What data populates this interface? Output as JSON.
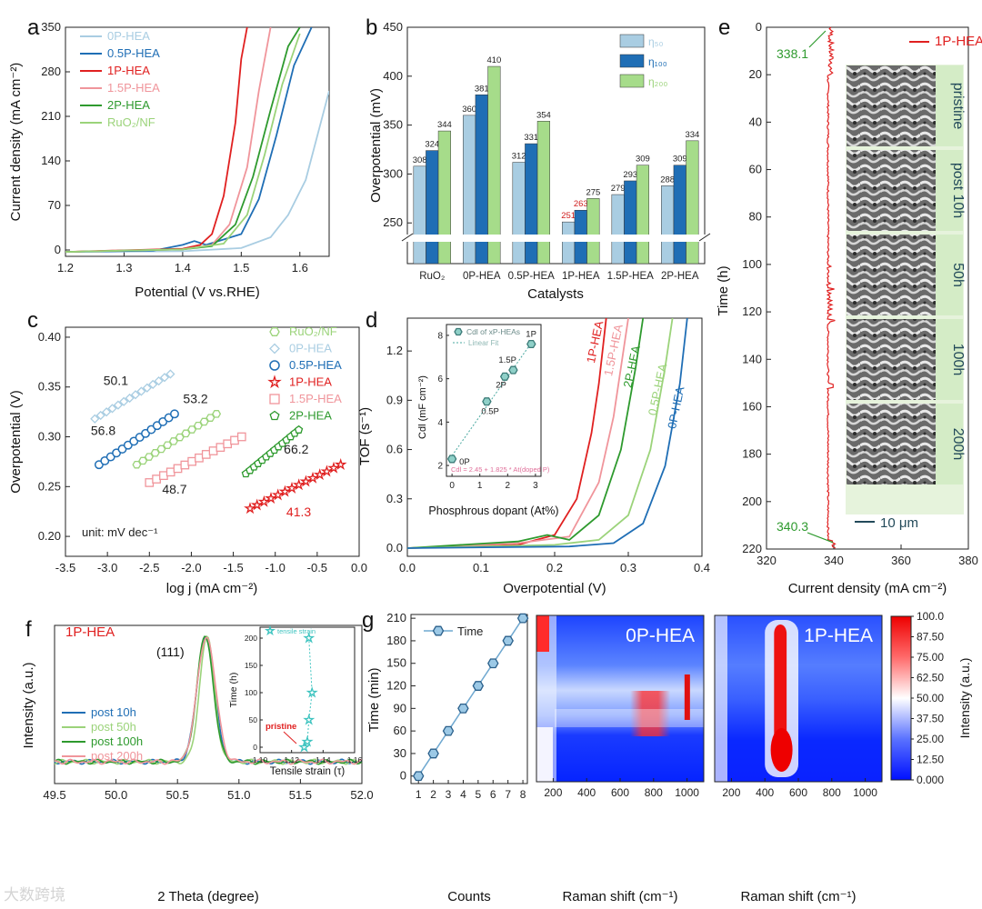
{
  "colors": {
    "0P": "#a9cde2",
    "05P": "#1f6eb5",
    "1P": "#e02020",
    "15P": "#f0959b",
    "2P": "#2e9a2e",
    "RuO2": "#9bd37a",
    "eta50": "#a9cde2",
    "eta100": "#1f6eb5",
    "eta200": "#a6dc8a"
  },
  "watermark": "大数跨境",
  "chart_data": [
    {
      "id": "a",
      "panel_letter": "a",
      "type": "line",
      "xlabel": "Potential (V vs.RHE)",
      "ylabel": "Current density (mA cm⁻²)",
      "xlim": [
        1.2,
        1.65
      ],
      "ylim": [
        -10,
        350
      ],
      "xticks": [
        "1.2",
        "1.3",
        "1.4",
        "1.5",
        "1.6"
      ],
      "yticks": [
        "0",
        "70",
        "140",
        "210",
        "280",
        "350"
      ],
      "legend": [
        "0P-HEA",
        "0.5P-HEA",
        "1P-HEA",
        "1.5P-HEA",
        "2P-HEA",
        "RuO₂/NF"
      ],
      "series": [
        {
          "name": "0P-HEA",
          "color": "0P",
          "x": [
            1.2,
            1.4,
            1.5,
            1.55,
            1.58,
            1.61,
            1.63,
            1.65
          ],
          "y": [
            -3,
            -2,
            3,
            20,
            55,
            110,
            180,
            250
          ]
        },
        {
          "name": "0.5P-HEA",
          "color": "05P",
          "x": [
            1.2,
            1.35,
            1.4,
            1.42,
            1.44,
            1.5,
            1.53,
            1.56,
            1.59,
            1.62
          ],
          "y": [
            -3,
            -1,
            8,
            14,
            8,
            25,
            80,
            180,
            290,
            350
          ]
        },
        {
          "name": "1P-HEA",
          "color": "1P",
          "x": [
            1.2,
            1.4,
            1.43,
            1.45,
            1.47,
            1.49,
            1.5,
            1.51
          ],
          "y": [
            -3,
            2,
            8,
            25,
            85,
            200,
            300,
            350
          ]
        },
        {
          "name": "1.5P-HEA",
          "color": "15P",
          "x": [
            1.2,
            1.4,
            1.45,
            1.48,
            1.51,
            1.53,
            1.55
          ],
          "y": [
            -3,
            1,
            8,
            40,
            130,
            250,
            350
          ]
        },
        {
          "name": "2P-HEA",
          "color": "2P",
          "x": [
            1.2,
            1.4,
            1.45,
            1.49,
            1.52,
            1.55,
            1.58,
            1.6
          ],
          "y": [
            -3,
            1,
            6,
            40,
            115,
            220,
            320,
            350
          ]
        },
        {
          "name": "RuO₂/NF",
          "color": "RuO2",
          "x": [
            1.2,
            1.4,
            1.47,
            1.51,
            1.54,
            1.57,
            1.6
          ],
          "y": [
            -3,
            1,
            10,
            55,
            150,
            260,
            340
          ]
        }
      ]
    },
    {
      "id": "b",
      "panel_letter": "b",
      "type": "bar",
      "xlabel": "Catalysts",
      "ylabel": "Overpotential (mV)",
      "categories": [
        "RuO₂",
        "0P-HEA",
        "0.5P-HEA",
        "1P-HEA",
        "1.5P-HEA",
        "2P-HEA"
      ],
      "ylim": [
        200,
        450
      ],
      "yticks": [
        "250",
        "300",
        "350",
        "400",
        "450"
      ],
      "legend": [
        "η₅₀",
        "η₁₀₀",
        "η₂₀₀"
      ],
      "series": [
        {
          "name": "η₅₀",
          "color": "eta50",
          "values": [
            308,
            360,
            312,
            251,
            279,
            288
          ],
          "labels": [
            "308",
            "360",
            "312",
            "251",
            "279",
            "288"
          ]
        },
        {
          "name": "η₁₀₀",
          "color": "eta100",
          "values": [
            324,
            381,
            331,
            263,
            293,
            309
          ],
          "labels": [
            "324",
            "381",
            "331",
            "263",
            "293",
            "309"
          ]
        },
        {
          "name": "η₂₀₀",
          "color": "eta200",
          "values": [
            344,
            410,
            354,
            275,
            309,
            334
          ],
          "labels": [
            "344",
            "410",
            "354",
            "275",
            "309",
            "334"
          ]
        }
      ]
    },
    {
      "id": "c",
      "panel_letter": "c",
      "type": "scatter",
      "xlabel": "log j (mA cm⁻²)",
      "ylabel": "Overpotential (V)",
      "xlim": [
        -3.5,
        0
      ],
      "ylim": [
        0.18,
        0.41
      ],
      "xticks": [
        "-3.5",
        "-3.0",
        "-2.5",
        "-2.0",
        "-1.5",
        "-1.0",
        "-0.5",
        "0.0"
      ],
      "yticks": [
        "0.20",
        "0.25",
        "0.30",
        "0.35",
        "0.40"
      ],
      "unit_note": "unit: mV dec⁻¹",
      "legend": [
        "RuO₂/NF",
        "0P-HEA",
        "0.5P-HEA",
        "1P-HEA",
        "1.5P-HEA",
        "2P-HEA"
      ],
      "series": [
        {
          "name": "RuO₂/NF",
          "color": "RuO2",
          "marker": "hexagon",
          "x0": -2.65,
          "x1": -1.7,
          "y0": 0.272,
          "y1": 0.323,
          "slope": "53.2"
        },
        {
          "name": "0P-HEA",
          "color": "0P",
          "marker": "diamond",
          "x0": -3.15,
          "x1": -2.25,
          "y0": 0.318,
          "y1": 0.363,
          "slope": "50.1"
        },
        {
          "name": "0.5P-HEA",
          "color": "05P",
          "marker": "circle",
          "x0": -3.1,
          "x1": -2.2,
          "y0": 0.272,
          "y1": 0.323,
          "slope": "56.8"
        },
        {
          "name": "1P-HEA",
          "color": "1P",
          "marker": "star",
          "x0": -1.3,
          "x1": -0.22,
          "y0": 0.228,
          "y1": 0.272,
          "slope": "41.3"
        },
        {
          "name": "1.5P-HEA",
          "color": "15P",
          "marker": "square",
          "x0": -2.5,
          "x1": -1.4,
          "y0": 0.254,
          "y1": 0.3,
          "slope": "48.7"
        },
        {
          "name": "2P-HEA",
          "color": "2P",
          "marker": "pentagon",
          "x0": -1.35,
          "x1": -0.72,
          "y0": 0.263,
          "y1": 0.307,
          "slope": "66.2"
        }
      ]
    },
    {
      "id": "d",
      "panel_letter": "d",
      "type": "line",
      "xlabel": "Overpotential (V)",
      "ylabel": "TOF (s⁻¹)",
      "xlim": [
        0,
        0.4
      ],
      "ylim": [
        -0.05,
        1.4
      ],
      "xticks": [
        "0.0",
        "0.1",
        "0.2",
        "0.3",
        "0.4"
      ],
      "yticks": [
        "0.0",
        "0.3",
        "0.6",
        "0.9",
        "1.2"
      ],
      "series": [
        {
          "name": "1P-HEA",
          "color": "1P",
          "x": [
            0,
            0.15,
            0.2,
            0.23,
            0.25,
            0.26,
            0.27
          ],
          "y": [
            0,
            0.02,
            0.08,
            0.3,
            0.7,
            1.0,
            1.4
          ]
        },
        {
          "name": "1.5P-HEA",
          "color": "15P",
          "x": [
            0,
            0.15,
            0.22,
            0.26,
            0.28,
            0.29,
            0.3
          ],
          "y": [
            0,
            0.03,
            0.07,
            0.4,
            0.8,
            1.1,
            1.4
          ]
        },
        {
          "name": "2P-HEA",
          "color": "2P",
          "x": [
            0,
            0.15,
            0.19,
            0.22,
            0.26,
            0.29,
            0.31,
            0.32
          ],
          "y": [
            0,
            0.04,
            0.08,
            0.05,
            0.2,
            0.6,
            1.1,
            1.4
          ]
        },
        {
          "name": "0.5P-HEA",
          "color": "RuO2",
          "x": [
            0,
            0.2,
            0.26,
            0.3,
            0.33,
            0.35,
            0.36
          ],
          "y": [
            0,
            0.02,
            0.05,
            0.2,
            0.6,
            1.1,
            1.4
          ]
        },
        {
          "name": "0P-HEA",
          "color": "05P",
          "x": [
            0,
            0.22,
            0.28,
            0.32,
            0.35,
            0.37,
            0.38
          ],
          "y": [
            0,
            0.01,
            0.03,
            0.15,
            0.5,
            1.0,
            1.4
          ]
        }
      ],
      "inset": {
        "xlabel": "Phosphrous dopant (At%)",
        "ylabel": "Cdl (mF cm⁻²)",
        "xlim": [
          -0.2,
          3.2
        ],
        "ylim": [
          1.5,
          8.5
        ],
        "xticks": [
          "0",
          "1",
          "2",
          "3"
        ],
        "yticks": [
          "2",
          "4",
          "6",
          "8"
        ],
        "legend": [
          "Cdl of xP-HEAs",
          "Linear Fit"
        ],
        "formula": "Cdl = 2.45 + 1.825 * At(doped P)",
        "points": [
          {
            "x": 0,
            "y": 2.3,
            "label": "0P"
          },
          {
            "x": 1.25,
            "y": 4.95,
            "label": "0.5P"
          },
          {
            "x": 1.9,
            "y": 6.1,
            "label": "2P"
          },
          {
            "x": 2.2,
            "y": 6.4,
            "label": "1.5P"
          },
          {
            "x": 2.85,
            "y": 7.6,
            "label": "1P"
          }
        ]
      }
    },
    {
      "id": "e",
      "panel_letter": "e",
      "type": "line",
      "xlabel": "Current density (mA cm⁻²)",
      "ylabel": "Time (h)",
      "xlim": [
        320,
        380
      ],
      "ylim": [
        0,
        220
      ],
      "xticks": [
        "320",
        "340",
        "360",
        "380"
      ],
      "yticks": [
        "0",
        "20",
        "40",
        "60",
        "80",
        "100",
        "120",
        "140",
        "160",
        "180",
        "200",
        "220"
      ],
      "legend": [
        "1P-HEA"
      ],
      "annotations": [
        "338.1",
        "340.3"
      ],
      "inset_labels": [
        "pristine",
        "post 10h",
        "50h",
        "100h",
        "200h"
      ],
      "scale_bar": "10 μm"
    },
    {
      "id": "f",
      "panel_letter": "f",
      "type": "line",
      "xlabel": "2 Theta (degree)",
      "ylabel": "Intensity (a.u.)",
      "xlim": [
        49.5,
        52.0
      ],
      "xticks": [
        "49.5",
        "50.0",
        "50.5",
        "51.0",
        "51.5",
        "52.0"
      ],
      "sample": "1P-HEA",
      "peak_label": "(111)",
      "peak_x": 50.73,
      "legend": [
        "post 10h",
        "post 50h",
        "post 100h",
        "post 200h"
      ],
      "inset": {
        "xlabel": "Tensile strain (τ)",
        "ylabel": "Time (h)",
        "legend": [
          "tensile strain"
        ],
        "annotation": "pristine",
        "xlim": [
          1.1,
          1.16
        ],
        "ylim": [
          -10,
          220
        ],
        "xticks": [
          "1.10",
          "1.12",
          "1.14",
          "1.16"
        ],
        "yticks": [
          "0",
          "50",
          "100",
          "150",
          "200"
        ],
        "points": [
          {
            "x": 1.128,
            "y": 0
          },
          {
            "x": 1.13,
            "y": 10
          },
          {
            "x": 1.131,
            "y": 50
          },
          {
            "x": 1.133,
            "y": 100
          },
          {
            "x": 1.131,
            "y": 200
          }
        ]
      }
    },
    {
      "id": "g",
      "panel_letter": "g",
      "type": "line",
      "xlabel": "Counts",
      "ylabel": "Time (min)",
      "xlim": [
        0.5,
        8.3
      ],
      "ylim": [
        -10,
        215
      ],
      "xticks": [
        "1",
        "2",
        "3",
        "4",
        "5",
        "6",
        "7",
        "8"
      ],
      "yticks": [
        "0",
        "30",
        "60",
        "90",
        "120",
        "150",
        "180",
        "210"
      ],
      "legend": [
        "Time"
      ],
      "x": [
        1,
        2,
        3,
        4,
        5,
        6,
        7,
        8
      ],
      "y": [
        0,
        30,
        60,
        90,
        120,
        150,
        180,
        210
      ]
    },
    {
      "id": "g-heatmaps",
      "type": "heatmap",
      "xlabel": "Raman shift (cm⁻¹)",
      "xticks": [
        "200",
        "400",
        "600",
        "800",
        "1000"
      ],
      "panels": [
        "0P-HEA",
        "1P-HEA"
      ],
      "colorbar_label": "Intensity (a.u.)",
      "colorbar_ticks": [
        "100.0",
        "87.50",
        "75.00",
        "62.50",
        "50.00",
        "37.50",
        "25.00",
        "12.50",
        "0.000"
      ]
    }
  ]
}
